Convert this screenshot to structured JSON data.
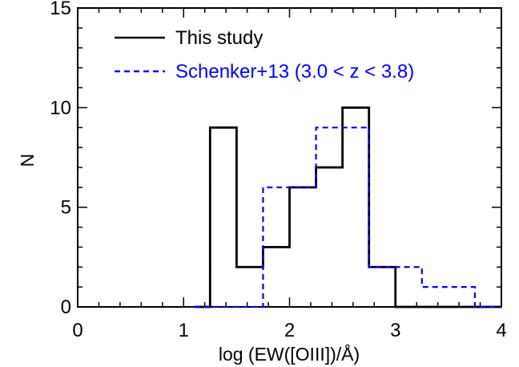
{
  "chart_data": {
    "type": "histogram",
    "xlabel": "log (EW([OIII])/Å)",
    "ylabel": "N",
    "xlim": [
      0,
      4
    ],
    "ylim": [
      0,
      15
    ],
    "x_ticks": [
      "0",
      "1",
      "2",
      "3",
      "4"
    ],
    "y_ticks": [
      "0",
      "5",
      "10",
      "15"
    ],
    "grid": false,
    "legend_position": "top-left",
    "bin_edges": [
      1.25,
      1.5,
      1.75,
      2.0,
      2.25,
      2.5,
      2.75,
      3.0,
      3.25,
      3.5,
      3.75,
      4.0
    ],
    "series": [
      {
        "name": "This study",
        "color": "#000000",
        "line_style": "solid",
        "counts": [
          9,
          2,
          3,
          6,
          7,
          10,
          2,
          0,
          0,
          0,
          0
        ]
      },
      {
        "name": "Schenker+13 (3.0 < z < 3.8)",
        "color": "#0000ff",
        "line_style": "dashed",
        "counts": [
          0,
          0,
          6,
          6,
          9,
          9,
          2,
          2,
          1,
          1,
          0
        ]
      }
    ]
  }
}
